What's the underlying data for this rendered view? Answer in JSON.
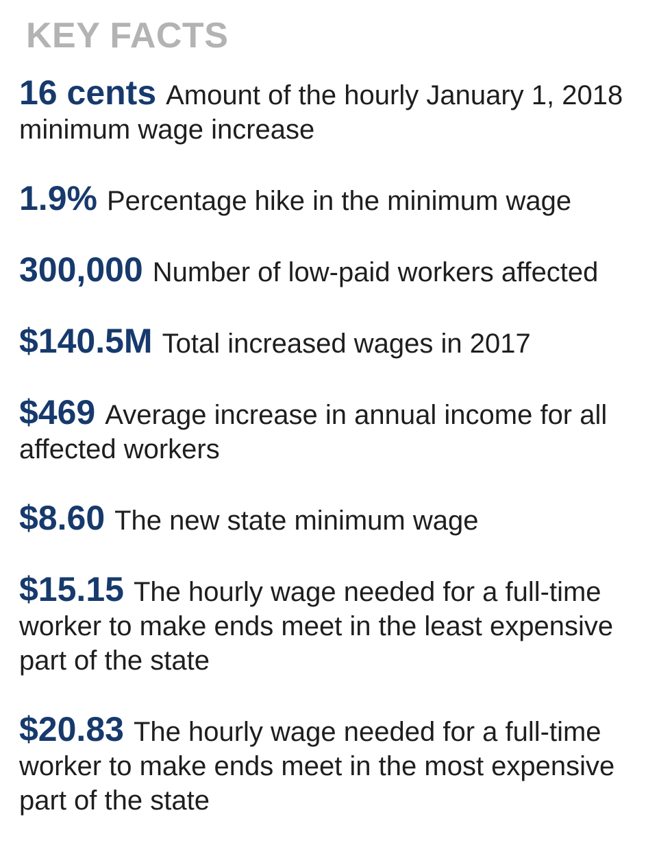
{
  "heading": "KEY FACTS",
  "facts": [
    {
      "value": "16 cents",
      "description": "Amount of the hourly January 1, 2018 minimum wage increase"
    },
    {
      "value": "1.9%",
      "description": "Percentage hike in the minimum wage"
    },
    {
      "value": "300,000",
      "description": "Number of low-paid workers affected"
    },
    {
      "value": "$140.5M",
      "description": "Total increased wages in 2017"
    },
    {
      "value": "$469",
      "description": "Average increase in annual income for all affected workers"
    },
    {
      "value": "$8.60",
      "description": "The new state minimum wage"
    },
    {
      "value": "$15.15",
      "description": "The hourly wage needed for a full-time worker to make ends meet in the least expensive part of the state"
    },
    {
      "value": "$20.83",
      "description": "The hourly wage needed for a full-time worker to make ends meet in the most expensive part of the state"
    }
  ],
  "colors": {
    "heading": "#b3b3b3",
    "value": "#173a6d",
    "text": "#1e1e1e"
  }
}
